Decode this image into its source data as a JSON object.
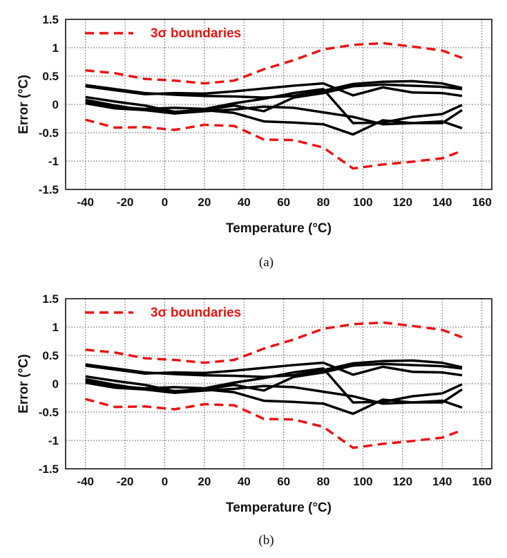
{
  "colors": {
    "boundary": "#ee1111",
    "measured": "#000000",
    "grid": "#777777"
  },
  "chart_data": [
    {
      "type": "line",
      "caption": "(a)",
      "xlabel": "Temperature (°C)",
      "ylabel": "Error (°C)",
      "xlim": [
        -50,
        165
      ],
      "ylim": [
        -1.5,
        1.5
      ],
      "xticks": [
        -40,
        -20,
        0,
        20,
        40,
        60,
        80,
        100,
        120,
        140,
        160
      ],
      "yticks": [
        -1.5,
        -1,
        -0.5,
        0,
        0.5,
        1,
        1.5
      ],
      "xtick_labels": [
        "-40",
        "-20",
        "0",
        "20",
        "40",
        "60",
        "80",
        "100",
        "120",
        "140",
        "160"
      ],
      "ytick_labels": [
        "-1.5",
        "-1",
        "-0.5",
        "0",
        "0.5",
        "1",
        "1.5"
      ],
      "grid": true,
      "legend": {
        "label": "3σ boundaries",
        "position": "top-left"
      },
      "boundaries": [
        {
          "style": "dashed",
          "color": "red",
          "x": [
            -40,
            -25,
            -10,
            5,
            20,
            35,
            50,
            65,
            80,
            95,
            110,
            125,
            140,
            150
          ],
          "y": [
            0.6,
            0.55,
            0.45,
            0.42,
            0.37,
            0.42,
            0.62,
            0.78,
            0.97,
            1.05,
            1.08,
            1.02,
            0.95,
            0.82
          ]
        },
        {
          "style": "dashed",
          "color": "red",
          "x": [
            -40,
            -25,
            -10,
            5,
            20,
            35,
            50,
            65,
            80,
            95,
            110,
            125,
            140,
            150
          ],
          "y": [
            -0.27,
            -0.41,
            -0.4,
            -0.45,
            -0.36,
            -0.38,
            -0.62,
            -0.63,
            -0.76,
            -1.13,
            -1.06,
            -1.01,
            -0.95,
            -0.82
          ]
        }
      ],
      "series": [
        {
          "x": [
            -40,
            -25,
            -10,
            5,
            20,
            35,
            50,
            65,
            80,
            95,
            110,
            125,
            140,
            150
          ],
          "y": [
            0.34,
            0.27,
            0.2,
            0.17,
            0.15,
            0.14,
            0.12,
            0.15,
            0.24,
            0.36,
            0.4,
            0.41,
            0.37,
            0.29
          ]
        },
        {
          "x": [
            -40,
            -25,
            -10,
            5,
            20,
            35,
            50,
            65,
            80,
            95,
            110,
            125,
            140,
            150
          ],
          "y": [
            0.32,
            0.25,
            0.18,
            0.2,
            0.19,
            0.23,
            0.28,
            0.33,
            0.37,
            0.16,
            0.3,
            0.21,
            0.2,
            0.15
          ]
        },
        {
          "x": [
            -40,
            -25,
            -10,
            5,
            20,
            35,
            50,
            65,
            80,
            95,
            110,
            125,
            140,
            150
          ],
          "y": [
            0.13,
            0.05,
            -0.02,
            -0.13,
            -0.1,
            -0.02,
            -0.12,
            0.12,
            0.2,
            0.32,
            0.35,
            0.33,
            0.31,
            0.27
          ]
        },
        {
          "x": [
            -40,
            -25,
            -10,
            5,
            20,
            35,
            50,
            65,
            80,
            95,
            110,
            125,
            140,
            150
          ],
          "y": [
            0.05,
            -0.04,
            -0.08,
            -0.06,
            -0.08,
            0.02,
            0.1,
            0.2,
            0.27,
            -0.33,
            -0.32,
            -0.22,
            -0.17,
            -0.01
          ]
        },
        {
          "x": [
            -40,
            -25,
            -10,
            5,
            20,
            35,
            50,
            65,
            80,
            95,
            110,
            125,
            140,
            150
          ],
          "y": [
            0.02,
            -0.07,
            -0.1,
            -0.16,
            -0.12,
            -0.09,
            -0.04,
            -0.06,
            -0.14,
            -0.22,
            -0.35,
            -0.33,
            -0.3,
            -0.42
          ]
        },
        {
          "x": [
            -40,
            -25,
            -10,
            5,
            20,
            35,
            50,
            65,
            80,
            95,
            110,
            125,
            140,
            150
          ],
          "y": [
            0.08,
            -0.02,
            -0.1,
            -0.13,
            -0.1,
            -0.15,
            -0.3,
            -0.32,
            -0.35,
            -0.53,
            -0.28,
            -0.33,
            -0.33,
            -0.1
          ]
        }
      ]
    },
    {
      "type": "line",
      "caption": "(b)",
      "xlabel": "Temperature (°C)",
      "ylabel": "Error (°C)",
      "xlim": [
        -50,
        165
      ],
      "ylim": [
        -1.5,
        1.5
      ],
      "xticks": [
        -40,
        -20,
        0,
        20,
        40,
        60,
        80,
        100,
        120,
        140,
        160
      ],
      "yticks": [
        -1.5,
        -1,
        -0.5,
        0,
        0.5,
        1,
        1.5
      ],
      "xtick_labels": [
        "-40",
        "-20",
        "0",
        "20",
        "40",
        "60",
        "80",
        "100",
        "120",
        "140",
        "160"
      ],
      "ytick_labels": [
        "-1.5",
        "-1",
        "-0.5",
        "0",
        "0.5",
        "1",
        "1.5"
      ],
      "grid": true,
      "legend": {
        "label": "3σ boundaries",
        "position": "top-left"
      },
      "boundaries": [
        {
          "style": "dashed",
          "color": "red",
          "x": [
            -40,
            -25,
            -10,
            5,
            20,
            35,
            50,
            65,
            80,
            95,
            110,
            125,
            140,
            150
          ],
          "y": [
            0.6,
            0.55,
            0.45,
            0.42,
            0.37,
            0.42,
            0.62,
            0.78,
            0.97,
            1.05,
            1.08,
            1.02,
            0.95,
            0.82
          ]
        },
        {
          "style": "dashed",
          "color": "red",
          "x": [
            -40,
            -25,
            -10,
            5,
            20,
            35,
            50,
            65,
            80,
            95,
            110,
            125,
            140,
            150
          ],
          "y": [
            -0.27,
            -0.41,
            -0.4,
            -0.45,
            -0.36,
            -0.38,
            -0.62,
            -0.63,
            -0.76,
            -1.13,
            -1.06,
            -1.01,
            -0.95,
            -0.82
          ]
        }
      ],
      "series": [
        {
          "x": [
            -40,
            -25,
            -10,
            5,
            20,
            35,
            50,
            65,
            80,
            95,
            110,
            125,
            140,
            150
          ],
          "y": [
            0.34,
            0.27,
            0.2,
            0.17,
            0.15,
            0.14,
            0.12,
            0.15,
            0.24,
            0.36,
            0.4,
            0.41,
            0.37,
            0.29
          ]
        },
        {
          "x": [
            -40,
            -25,
            -10,
            5,
            20,
            35,
            50,
            65,
            80,
            95,
            110,
            125,
            140,
            150
          ],
          "y": [
            0.32,
            0.25,
            0.18,
            0.2,
            0.19,
            0.23,
            0.28,
            0.33,
            0.37,
            0.16,
            0.3,
            0.21,
            0.2,
            0.15
          ]
        },
        {
          "x": [
            -40,
            -25,
            -10,
            5,
            20,
            35,
            50,
            65,
            80,
            95,
            110,
            125,
            140,
            150
          ],
          "y": [
            0.13,
            0.05,
            -0.02,
            -0.13,
            -0.1,
            -0.02,
            -0.12,
            0.12,
            0.2,
            0.32,
            0.35,
            0.33,
            0.31,
            0.27
          ]
        },
        {
          "x": [
            -40,
            -25,
            -10,
            5,
            20,
            35,
            50,
            65,
            80,
            95,
            110,
            125,
            140,
            150
          ],
          "y": [
            0.05,
            -0.04,
            -0.08,
            -0.06,
            -0.08,
            0.02,
            0.1,
            0.2,
            0.27,
            -0.33,
            -0.32,
            -0.22,
            -0.17,
            -0.01
          ]
        },
        {
          "x": [
            -40,
            -25,
            -10,
            5,
            20,
            35,
            50,
            65,
            80,
            95,
            110,
            125,
            140,
            150
          ],
          "y": [
            0.02,
            -0.07,
            -0.1,
            -0.16,
            -0.12,
            -0.09,
            -0.04,
            -0.06,
            -0.14,
            -0.22,
            -0.35,
            -0.33,
            -0.3,
            -0.42
          ]
        },
        {
          "x": [
            -40,
            -25,
            -10,
            5,
            20,
            35,
            50,
            65,
            80,
            95,
            110,
            125,
            140,
            150
          ],
          "y": [
            0.08,
            -0.02,
            -0.1,
            -0.13,
            -0.1,
            -0.15,
            -0.3,
            -0.32,
            -0.35,
            -0.53,
            -0.28,
            -0.33,
            -0.33,
            -0.1
          ]
        }
      ]
    }
  ]
}
